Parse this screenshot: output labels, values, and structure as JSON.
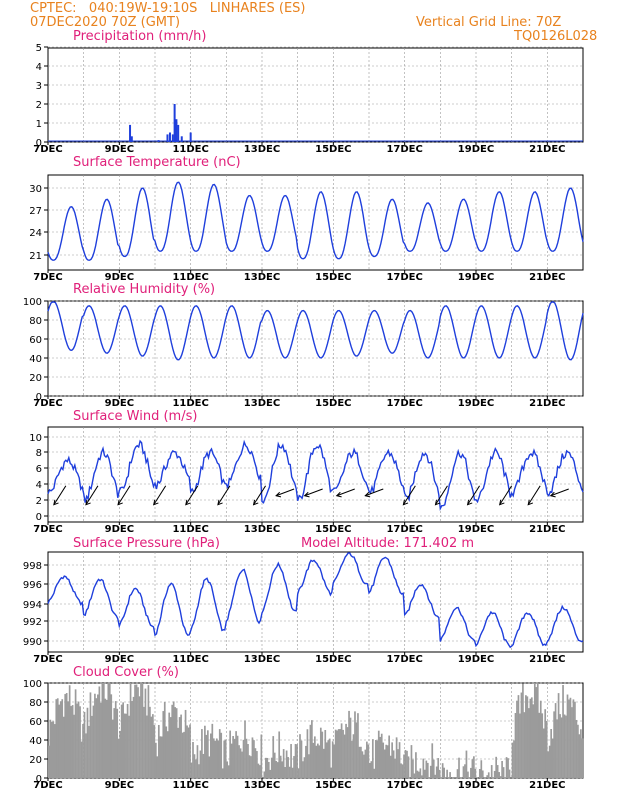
{
  "header": {
    "line1": "CPTEC:   040:19W-19:10S   LINHARES (ES)",
    "line2": "07DEC2020 70Z (GMT)",
    "grid_note": "Vertical Grid Line: 70Z",
    "code": "TQ0126L028"
  },
  "model_altitude": "Model Altitude: 171.402  m",
  "colors": {
    "header": "#e8821e",
    "title": "#e0207a",
    "line": "#1f3fdc",
    "cloud": "#9b9b9b",
    "grid": "#9a9a9a"
  },
  "chart_data": [
    {
      "type": "bar",
      "title": "Precipitation  (mm/h)",
      "xlabel": "",
      "ylabel": "",
      "x_ticks": [
        "7DEC",
        "9DEC",
        "11DEC",
        "13DEC",
        "15DEC",
        "17DEC",
        "19DEC",
        "21DEC"
      ],
      "y_ticks": [
        "0",
        "1",
        "2",
        "3",
        "4",
        "5"
      ],
      "ylim": [
        0,
        5
      ],
      "x_range_days": [
        0,
        15
      ],
      "grid": true,
      "bars": [
        {
          "t": 2.3,
          "v": 0.9
        },
        {
          "t": 2.35,
          "v": 0.3
        },
        {
          "t": 3.1,
          "v": 0.1
        },
        {
          "t": 3.35,
          "v": 0.4
        },
        {
          "t": 3.42,
          "v": 0.5
        },
        {
          "t": 3.5,
          "v": 0.4
        },
        {
          "t": 3.55,
          "v": 2.0
        },
        {
          "t": 3.6,
          "v": 1.2
        },
        {
          "t": 3.65,
          "v": 0.9
        },
        {
          "t": 3.75,
          "v": 0.3
        },
        {
          "t": 4.0,
          "v": 0.5
        }
      ]
    },
    {
      "type": "line",
      "title": "Surface Temperature  (nC)",
      "x_ticks": [
        "7DEC",
        "9DEC",
        "11DEC",
        "13DEC",
        "15DEC",
        "17DEC",
        "19DEC",
        "21DEC"
      ],
      "y_ticks": [
        "21",
        "24",
        "27",
        "30"
      ],
      "ylim": [
        19.8,
        31.2
      ],
      "grid": true,
      "daily_max": [
        27.5,
        28.5,
        30.0,
        30.8,
        30.5,
        29.0,
        29.0,
        29.5,
        29.5,
        28.5,
        28.0,
        28.5,
        29.5,
        29.5,
        30.0,
        30.0
      ],
      "daily_min": [
        20.3,
        20.3,
        20.8,
        21.5,
        21.5,
        21.5,
        21.5,
        20.5,
        20.5,
        20.8,
        21.5,
        21.5,
        21.5,
        21.5,
        21.5,
        21.5
      ]
    },
    {
      "type": "line",
      "title": "Relative Humidity  (%)",
      "x_ticks": [
        "7DEC",
        "9DEC",
        "11DEC",
        "13DEC",
        "15DEC",
        "17DEC",
        "19DEC",
        "21DEC"
      ],
      "y_ticks": [
        "0",
        "20",
        "40",
        "60",
        "80",
        "100"
      ],
      "ylim": [
        0,
        100
      ],
      "grid": true,
      "daily_max": [
        100,
        95,
        95,
        95,
        95,
        95,
        90,
        90,
        90,
        90,
        90,
        95,
        95,
        95,
        100,
        100
      ],
      "daily_min": [
        48,
        45,
        42,
        38,
        40,
        40,
        40,
        40,
        42,
        45,
        40,
        40,
        40,
        40,
        38,
        38
      ]
    },
    {
      "type": "line",
      "title": "Surface Wind  (m/s)",
      "x_ticks": [
        "7DEC",
        "9DEC",
        "11DEC",
        "13DEC",
        "15DEC",
        "17DEC",
        "19DEC",
        "21DEC"
      ],
      "y_ticks": [
        "0",
        "2",
        "4",
        "6",
        "8",
        "10"
      ],
      "ylim": [
        -1,
        10.5
      ],
      "grid": true,
      "daily_max": [
        7,
        8,
        9,
        8,
        8,
        9,
        9,
        9,
        8,
        8,
        8,
        8,
        8,
        8,
        8,
        9
      ],
      "daily_min": [
        3,
        2,
        3,
        4,
        3,
        4,
        2,
        2,
        3,
        3,
        2,
        1,
        2,
        3,
        3,
        3
      ],
      "wind_arrows": [
        {
          "t": 0.5,
          "dir": "NE"
        },
        {
          "t": 1.4,
          "dir": "NE"
        },
        {
          "t": 2.3,
          "dir": "NE"
        },
        {
          "t": 3.3,
          "dir": "NE"
        },
        {
          "t": 4.2,
          "dir": "NE"
        },
        {
          "t": 5.1,
          "dir": "NE"
        },
        {
          "t": 6.1,
          "dir": "NE"
        },
        {
          "t": 6.9,
          "dir": "E"
        },
        {
          "t": 7.7,
          "dir": "E"
        },
        {
          "t": 8.6,
          "dir": "E"
        },
        {
          "t": 9.4,
          "dir": "E"
        },
        {
          "t": 10.3,
          "dir": "NE"
        },
        {
          "t": 11.2,
          "dir": "NE"
        },
        {
          "t": 12.1,
          "dir": "NE"
        },
        {
          "t": 13.0,
          "dir": "NE"
        },
        {
          "t": 13.8,
          "dir": "NE"
        },
        {
          "t": 14.6,
          "dir": "E"
        }
      ]
    },
    {
      "type": "line",
      "title": "Surface Pressure  (hPa)",
      "x_ticks": [
        "7DEC",
        "9DEC",
        "11DEC",
        "13DEC",
        "15DEC",
        "17DEC",
        "19DEC",
        "21DEC"
      ],
      "y_ticks": [
        "990",
        "992",
        "994",
        "996",
        "998"
      ],
      "ylim": [
        989,
        999.5
      ],
      "grid": true,
      "daily_max": [
        996.8,
        996.5,
        995.5,
        996.0,
        996.5,
        997.5,
        998.0,
        998.5,
        999.2,
        998.8,
        996.0,
        993.5,
        993.0,
        993.0,
        993.5,
        994.0
      ],
      "daily_min": [
        994.0,
        992.5,
        991.5,
        990.5,
        991.0,
        992.0,
        993.0,
        995.0,
        996.0,
        995.0,
        992.5,
        990.0,
        989.5,
        989.5,
        990.0,
        990.0
      ]
    },
    {
      "type": "area",
      "title": "Cloud Cover  (%)",
      "x_ticks": [
        "7DEC",
        "9DEC",
        "11DEC",
        "13DEC",
        "15DEC",
        "17DEC",
        "19DEC",
        "21DEC"
      ],
      "y_ticks": [
        "0",
        "20",
        "40",
        "60",
        "80",
        "100"
      ],
      "ylim": [
        0,
        100
      ],
      "grid": true,
      "daily_level": [
        85,
        95,
        95,
        70,
        40,
        45,
        30,
        45,
        55,
        35,
        20,
        10,
        5,
        90,
        80,
        95
      ]
    }
  ]
}
